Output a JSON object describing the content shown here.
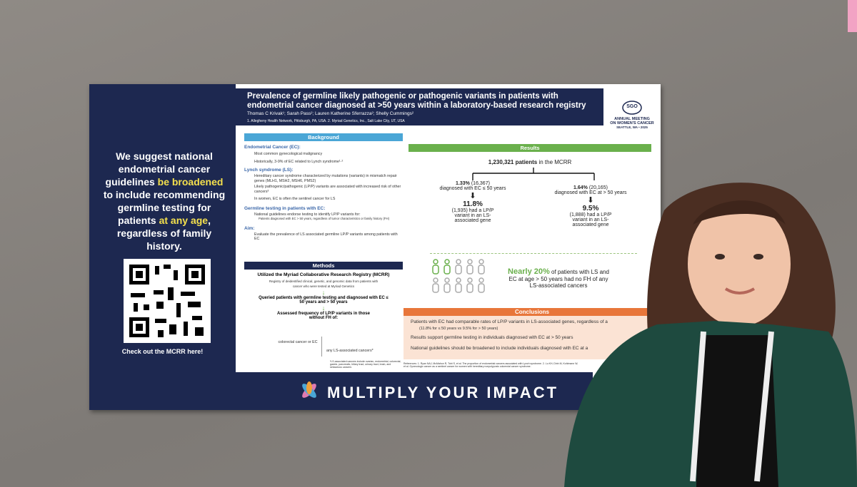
{
  "poster": {
    "left_panel": {
      "message": [
        "We suggest national endometrial cancer guidelines ",
        "be broadened",
        " to include recommending germline testing for patients ",
        "at any age",
        ", regardless of family history."
      ],
      "qr_caption": "Check out the MCRR here!"
    },
    "title": "Prevalence of germline likely pathogenic or pathogenic variants in patients with endometrial cancer diagnosed at  >50 years within a laboratory-based research registry",
    "authors": "Thomas C Krivak¹; Sarah Pass²; Lauren Katherine Sferrazza²; Shelly Cummings²",
    "affiliations": "1. Allegheny Health Network, Pittsburgh, PA, USA.   2. Myriad Genetics, Inc., Salt Lake City, UT, USA",
    "logo": {
      "org": "SGO",
      "line1": "ANNUAL MEETING",
      "line2": "ON WOMEN'S CANCER",
      "line3": "SEATTLE, WA • 2025"
    },
    "background": {
      "heading": "Background",
      "ec_title": "Endometrial Cancer (EC):",
      "ec_items": [
        "Most common gynecological malignancy",
        "Historically, 3-9% of EC related to Lynch syndrome¹·²"
      ],
      "ls_title": "Lynch syndrome (LS):",
      "ls_items": [
        "Hereditary cancer syndrome characterized by mutations (variants) in mismatch repair genes (MLH1, MSH2, MSH6, PMS2)",
        "Likely pathogenic/pathogenic (LP/P) variants are associated with increased risk of other cancers³",
        "In women, EC is often the sentinel cancer for LS"
      ],
      "gt_title": "Germline testing in patients with EC:",
      "gt_items": [
        "National guidelines endorse testing to identify LP/P variants for:",
        "Patients diagnosed with EC > 50 years, regardless of tumor characteristics or family history (FH)"
      ],
      "aim_title": "Aim:",
      "aim": "Evaluate the prevalence of LS associated germline LP/P variants among patients with EC"
    },
    "methods": {
      "heading": "Methods",
      "subtitle": "Utilized the Myriad Collaborative Research Registry (MCRR)",
      "registry": "Registry of deidentified clinical, genetic, and genomic data from patients with cancer who were tested at Myriad Genetics",
      "step1": "Queried patients with germline testing and  diagnosed with EC ≤ 50 years and > 50 years",
      "step2": "Assessed frequency of LP/P variants in those without FH of:",
      "outcome1": "colorectal cancer or EC",
      "outcome2": "any LS-associated cancers*",
      "note": "*LS-associated cancers include ovarian, endometrial, colorectal, gastric, pancreatic, biliary tract, urinary tract, brain, and sebaceous cancers"
    },
    "results": {
      "heading": "Results",
      "total": "1,230,321 patients",
      "total_suffix": " in the MCRR",
      "branches": [
        {
          "pct": "1.33%",
          "count": " (16,367)",
          "desc": "diagnosed with EC ≤ 50 years",
          "result": "11.8%",
          "result_count": "(1,935) had a LP/P variant in an LS-associated gene"
        },
        {
          "pct": "1.64%",
          "count": " (20,165)",
          "desc": "diagnosed with EC at > 50 years",
          "result": "9.5%",
          "result_count": "(1,888) had a LP/P variant in an LS-associated gene"
        }
      ],
      "highlight": "Nearly 20%",
      "highlight_rest": " of patients with LS and EC at age > 50 years had no FH of any LS-associated cancers"
    },
    "conclusions": {
      "heading": "Conclusions",
      "items": [
        "Patients with EC had comparable rates of LP/P variants in LS-associated genes, regardless of a",
        "(11.8% for ≤ 50 years vs 9.5% for > 50 years)",
        "Results support germline testing in individuals diagnosed with EC at > 50 years",
        "National guidelines should be broadened to include individuals diagnosed with EC at a"
      ]
    },
    "references": "References: 1. Ryan NAJ, McMahon R, Tobi S, et al. The proportion of endometrial cancers associated with Lynch syndrome. 2. Lu KH, Dinh M, Kohlmann W, et al. Gynecologic cancer as a sentinel cancer for women with hereditary nonpolyposis colorectal cancer syndrome.",
    "footer": "MULTIPLY YOUR IMPACT"
  }
}
